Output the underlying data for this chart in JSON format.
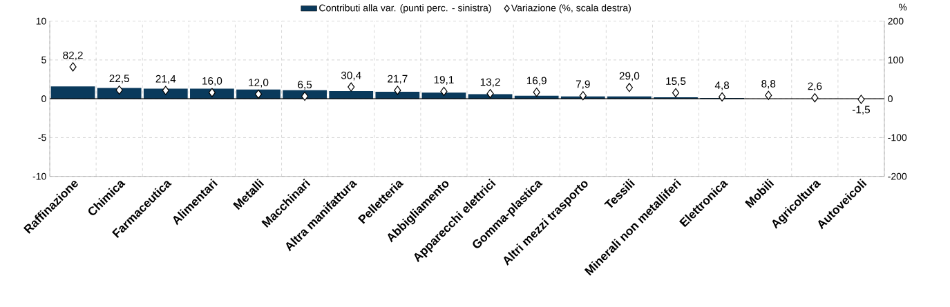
{
  "chart_data": {
    "type": "bar",
    "y2label": "%",
    "categories": [
      "Raffinazione",
      "Chimica",
      "Farmaceutica",
      "Alimentari",
      "Metalli",
      "Macchinari",
      "Altra manifattura",
      "Pelletteria",
      "Abbigliamento",
      "Apparecchi elettrici",
      "Gomma-plastica",
      "Altri mezzi trasporto",
      "Tessili",
      "Minerali non metalliferi",
      "Elettronica",
      "Mobili",
      "Agricoltura",
      "Autoveicoli"
    ],
    "series": [
      {
        "name": "Contributi alla var. (punti perc. - sinistra)",
        "color": "#0a3a5c",
        "values": [
          1.6,
          1.4,
          1.3,
          1.3,
          1.2,
          1.1,
          1.0,
          0.9,
          0.8,
          0.6,
          0.4,
          0.3,
          0.3,
          0.2,
          0.1,
          0.0,
          0.0,
          0.0
        ]
      },
      {
        "name": "Variazione (%, scala destra)",
        "type": "scatter",
        "axis": "y2",
        "marker": "diamond",
        "color": "#000000",
        "values": [
          82.2,
          22.5,
          21.4,
          16.0,
          12.0,
          6.5,
          30.4,
          21.7,
          19.1,
          13.2,
          16.9,
          7.9,
          29.0,
          15.5,
          4.8,
          8.8,
          2.6,
          -1.5
        ],
        "value_labels": [
          "82,2",
          "22,5",
          "21,4",
          "16,0",
          "12,0",
          "6,5",
          "30,4",
          "21,7",
          "19,1",
          "13,2",
          "16,9",
          "7,9",
          "29,0",
          "15,5",
          "4,8",
          "8,8",
          "2,6",
          "-1,5"
        ]
      }
    ],
    "ylim": [
      -10,
      10
    ],
    "yticks": [
      -10,
      -5,
      0,
      5,
      10
    ],
    "y2lim": [
      -200,
      200
    ],
    "y2ticks": [
      -200,
      -100,
      0,
      100,
      200
    ],
    "ref_lines": [
      {
        "axis": "y",
        "value": 0,
        "color": "#000000"
      }
    ],
    "grid": true,
    "legend": "top"
  }
}
